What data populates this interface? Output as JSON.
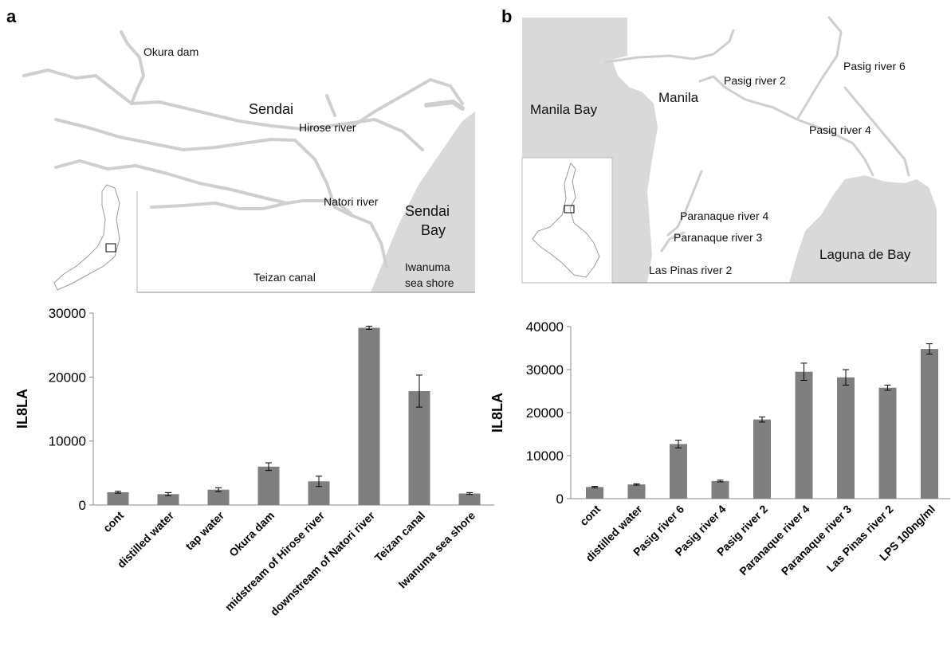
{
  "panel_a": {
    "letter": "a",
    "map_labels": {
      "okura_dam": "Okura dam",
      "sendai": "Sendai",
      "hirose_river": "Hirose river",
      "natori_river": "Natori river",
      "sendai_bay_1": "Sendai",
      "sendai_bay_2": "Bay",
      "teizan_canal": "Teizan canal",
      "iwanuma_1": "Iwanuma",
      "iwanuma_2": "sea shore"
    }
  },
  "panel_b": {
    "letter": "b",
    "map_labels": {
      "manila_bay": "Manila Bay",
      "manila": "Manila",
      "pasig2": "Pasig river 2",
      "pasig6": "Pasig river 6",
      "pasig4": "Pasig river 4",
      "paranaque4": "Paranaque river 4",
      "paranaque3": "Paranaque river 3",
      "laspinas2": "Las Pinas river 2",
      "laguna": "Laguna de Bay"
    }
  },
  "colors": {
    "bar": "#7f7f7f",
    "water": "#d9d9d9",
    "river": "#d4d4d4",
    "axis": "#888888"
  },
  "chart_data": [
    {
      "type": "bar",
      "title": "",
      "xlabel": "",
      "ylabel": "IL8LA",
      "ylim": [
        0,
        30000
      ],
      "yticks": [
        0,
        10000,
        20000,
        30000
      ],
      "categories": [
        "cont",
        "distilled water",
        "tap water",
        "Okura dam",
        "midstream of Hirose river",
        "downstream of Natori river",
        "Teizan canal",
        "Iwanuma sea shore"
      ],
      "values": [
        2000,
        1700,
        2400,
        6000,
        3700,
        27700,
        17800,
        1800
      ],
      "errors": [
        150,
        250,
        300,
        600,
        800,
        250,
        2500,
        150
      ]
    },
    {
      "type": "bar",
      "title": "",
      "xlabel": "",
      "ylabel": "IL8LA",
      "ylim": [
        0,
        40000
      ],
      "yticks": [
        0,
        10000,
        20000,
        30000,
        40000
      ],
      "categories": [
        "cont",
        "distilled water",
        "Pasig river 6",
        "Pasig river 4",
        "Pasig river 2",
        "Paranaque river 4",
        "Paranaque river 3",
        "Las Pinas river 2",
        "LPS 100ng/ml"
      ],
      "values": [
        2700,
        3300,
        12700,
        4100,
        18400,
        29500,
        28200,
        25800,
        34800
      ],
      "errors": [
        150,
        150,
        900,
        200,
        600,
        2000,
        1800,
        600,
        1200
      ]
    }
  ]
}
